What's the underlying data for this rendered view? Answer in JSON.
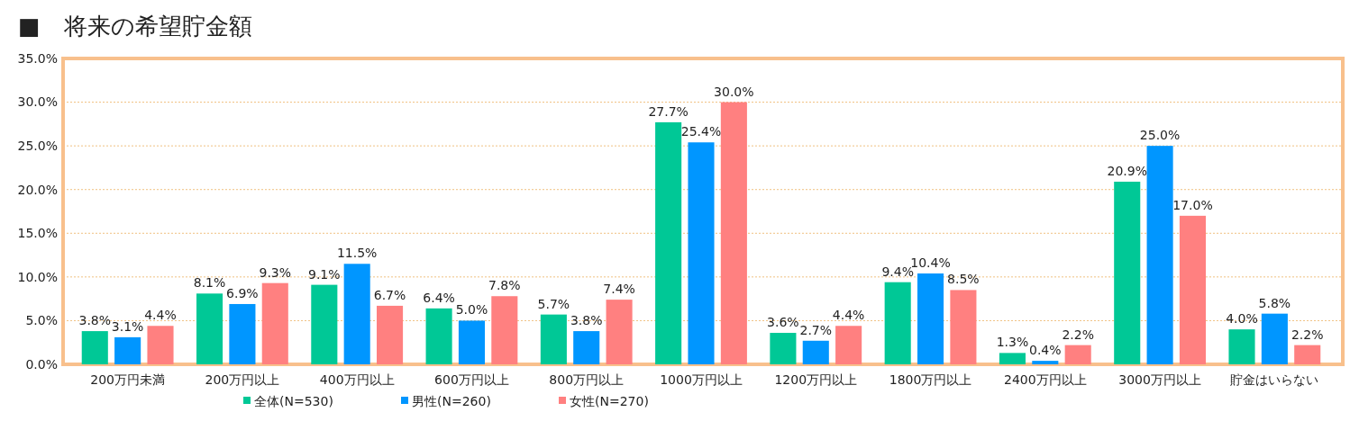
{
  "chart_data": {
    "type": "bar",
    "title": "■　将来の希望貯金額",
    "categories": [
      "200万円未満",
      "200万円以上",
      "400万円以上",
      "600万円以上",
      "800万円以上",
      "1000万円以上",
      "1200万円以上",
      "1800万円以上",
      "2400万円以上",
      "3000万円以上",
      "貯金はいらない"
    ],
    "series": [
      {
        "name": "全体(N=530)",
        "color": "#00c896",
        "values": [
          3.8,
          8.1,
          9.1,
          6.4,
          5.7,
          27.7,
          3.6,
          9.4,
          1.3,
          20.9,
          4.0
        ],
        "value_labels": [
          "3.8%",
          "8.1%",
          "9.1%",
          "6.4%",
          "5.7%",
          "27.7%",
          "3.6%",
          "9.4%",
          "1.3%",
          "20.9%",
          "4.0%"
        ]
      },
      {
        "name": "男性(N=260)",
        "color": "#0096ff",
        "values": [
          3.1,
          6.9,
          11.5,
          5.0,
          3.8,
          25.4,
          2.7,
          10.4,
          0.4,
          25.0,
          5.8
        ],
        "value_labels": [
          "3.1%",
          "6.9%",
          "11.5%",
          "5.0%",
          "3.8%",
          "25.4%",
          "2.7%",
          "10.4%",
          "0.4%",
          "25.0%",
          "5.8%"
        ]
      },
      {
        "name": "女性(N=270)",
        "color": "#ff8080",
        "values": [
          4.4,
          9.3,
          6.7,
          7.8,
          7.4,
          30.0,
          4.4,
          8.5,
          2.2,
          17.0,
          2.2
        ],
        "value_labels": [
          "4.4%",
          "9.3%",
          "6.7%",
          "7.8%",
          "7.4%",
          "30.0%",
          "4.4%",
          "8.5%",
          "2.2%",
          "17.0%",
          "2.2%"
        ]
      }
    ],
    "ylim": [
      0,
      35
    ],
    "yticks": [
      {
        "value": 0,
        "label": "0.0%"
      },
      {
        "value": 5,
        "label": "5.0%"
      },
      {
        "value": 10,
        "label": "10.0%"
      },
      {
        "value": 15,
        "label": "15.0%"
      },
      {
        "value": 20,
        "label": "20.0%"
      },
      {
        "value": 25,
        "label": "25.0%"
      },
      {
        "value": 30,
        "label": "30.0%"
      },
      {
        "value": 35,
        "label": "35.0%"
      }
    ],
    "grid": "y",
    "legend": "bottom"
  }
}
